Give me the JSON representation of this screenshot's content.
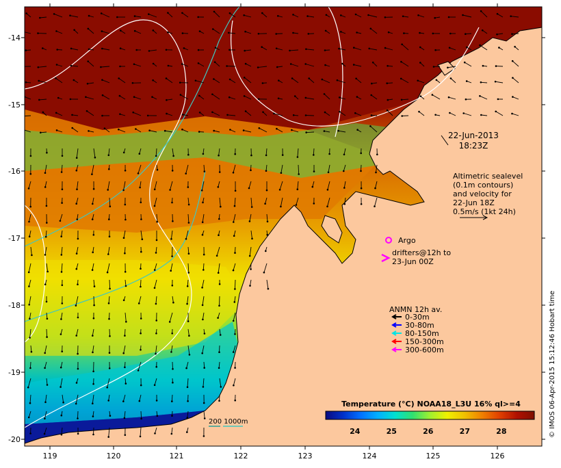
{
  "map": {
    "date": "22-Jun-2013",
    "time": "18:23Z",
    "lon_ticks": [
      "119",
      "120",
      "121",
      "122",
      "123",
      "124",
      "125",
      "126"
    ],
    "lat_ticks": [
      "-14",
      "-15",
      "-16",
      "-17",
      "-18",
      "-19",
      "-20"
    ],
    "lon_range": [
      118.6,
      126.7
    ],
    "lat_range": [
      -20.05,
      -13.6
    ]
  },
  "altimetry_note": {
    "lines": [
      "Altimetric sealevel",
      "(0.1m contours)",
      "and velocity for",
      "22-Jun 18Z",
      "0.5m/s (1kt 24h)"
    ]
  },
  "legend": {
    "argo_label": "Argo",
    "drifters_lines": [
      "drifters@12h to",
      "23-Jun 00Z"
    ],
    "anmn_title": "ANMN 12h av.",
    "anmn_items": [
      {
        "label": "0-30m",
        "color": "#000000"
      },
      {
        "label": "30-80m",
        "color": "#0000ff"
      },
      {
        "label": "80-150m",
        "color": "#00e5e5"
      },
      {
        "label": "150-300m",
        "color": "#ff0000"
      },
      {
        "label": "300-600m",
        "color": "#ff00ff"
      }
    ],
    "bathy_label": "200  1000m"
  },
  "colorbar": {
    "title": "Temperature (°C) NOAA18_L3U 16% ql>=4",
    "ticks": [
      "24",
      "25",
      "26",
      "27",
      "28"
    ],
    "min": 23.2,
    "max": 28.9,
    "colors": [
      "#0a0a80",
      "#0030c8",
      "#0070ff",
      "#00b0ff",
      "#00e0d0",
      "#30e070",
      "#a0f030",
      "#f0f000",
      "#f0c000",
      "#f08000",
      "#e04000",
      "#b01000",
      "#801000"
    ]
  },
  "credit": "© IMOS 06-Apr-2015 15:12:46 Hobart time"
}
